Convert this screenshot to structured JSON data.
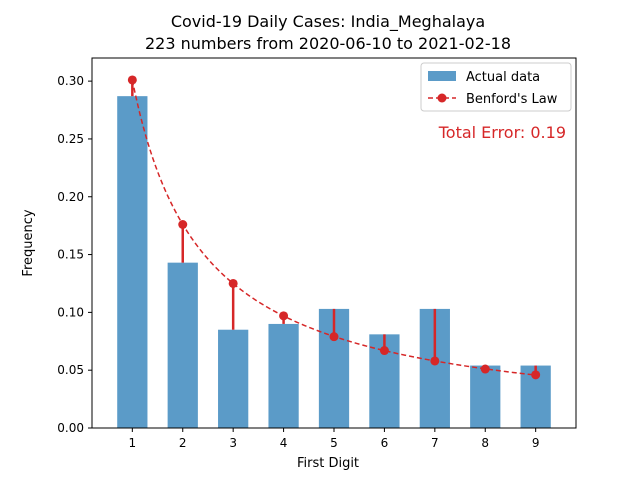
{
  "chart_data": {
    "type": "bar",
    "title": "Covid-19 Daily Cases: India_Meghalaya",
    "subtitle": "223 numbers from 2020-06-10 to 2021-02-18",
    "xlabel": "First Digit",
    "ylabel": "Frequency",
    "categories": [
      "1",
      "2",
      "3",
      "4",
      "5",
      "6",
      "7",
      "8",
      "9"
    ],
    "ylim": [
      0,
      0.32
    ],
    "yticks": [
      "0.00",
      "0.05",
      "0.10",
      "0.15",
      "0.20",
      "0.25",
      "0.30"
    ],
    "series": [
      {
        "name": "Actual data",
        "kind": "bar",
        "color": "#5b9bc8",
        "values": [
          0.287,
          0.143,
          0.085,
          0.09,
          0.103,
          0.081,
          0.103,
          0.054,
          0.054
        ]
      },
      {
        "name": "Benford's Law",
        "kind": "line-dashed-markers",
        "color": "#d62728",
        "values": [
          0.301,
          0.176,
          0.125,
          0.097,
          0.079,
          0.067,
          0.058,
          0.051,
          0.046
        ]
      }
    ],
    "annotation": "Total Error: 0.19",
    "annotation_color": "#d62728",
    "legend_position": "top-right",
    "grid": false
  }
}
